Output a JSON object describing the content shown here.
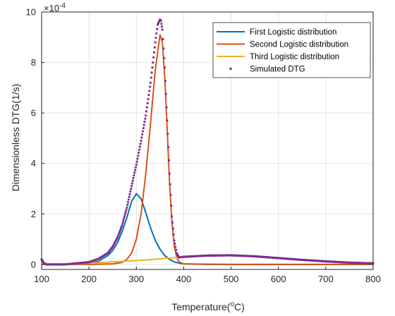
{
  "chart_data": {
    "type": "line",
    "xlabel": "Temperature(",
    "xlabel_sup": "o",
    "xlabel_tail": "C)",
    "ylabel": "Dimensionless DTG(1/s)",
    "y_exponent_base": "×10",
    "y_exponent_power": "-4",
    "xlim": [
      100,
      800
    ],
    "ylim": [
      -0.2,
      10
    ],
    "x_ticks": [
      100,
      200,
      300,
      400,
      500,
      600,
      700,
      800
    ],
    "y_ticks": [
      0,
      2,
      4,
      6,
      8,
      10
    ],
    "grid": true,
    "legend_position": "top-right",
    "series": [
      {
        "name": "First Logistic distribution",
        "color": "#0072BD",
        "style": "line",
        "x": [
          100,
          150,
          200,
          220,
          240,
          250,
          260,
          270,
          280,
          290,
          300,
          310,
          320,
          330,
          340,
          350,
          360,
          370,
          380,
          390,
          400,
          450,
          500,
          600,
          700,
          800
        ],
        "y": [
          0.0,
          0.0,
          0.04,
          0.12,
          0.35,
          0.55,
          0.85,
          1.3,
          1.85,
          2.5,
          2.8,
          2.6,
          2.05,
          1.45,
          0.95,
          0.6,
          0.35,
          0.2,
          0.1,
          0.05,
          0.02,
          0.0,
          0.0,
          0.0,
          0.0,
          0.0
        ]
      },
      {
        "name": "Second Logistic distribution",
        "color": "#D95319",
        "style": "line",
        "x": [
          100,
          200,
          250,
          270,
          280,
          290,
          300,
          310,
          320,
          330,
          340,
          350,
          355,
          360,
          365,
          370,
          375,
          380,
          385,
          390,
          400,
          500,
          600,
          700,
          800
        ],
        "y": [
          0.0,
          0.0,
          0.02,
          0.08,
          0.2,
          0.45,
          1.0,
          2.0,
          3.6,
          5.6,
          7.7,
          9.1,
          8.8,
          7.4,
          5.4,
          3.3,
          1.7,
          0.75,
          0.3,
          0.1,
          0.02,
          0.0,
          0.0,
          0.0,
          0.0
        ]
      },
      {
        "name": "Third Logistic distribution",
        "color": "#EDB120",
        "style": "line",
        "x": [
          100,
          150,
          200,
          250,
          300,
          350,
          400,
          450,
          500,
          550,
          600,
          650,
          700,
          750,
          800
        ],
        "y": [
          0.0,
          0.0,
          0.05,
          0.1,
          0.15,
          0.22,
          0.3,
          0.35,
          0.36,
          0.32,
          0.25,
          0.18,
          0.12,
          0.07,
          0.04
        ]
      },
      {
        "name": "Simulated DTG",
        "color": "#7E2F8E",
        "style": "dots",
        "x": [
          100,
          105,
          110,
          120,
          150,
          200,
          220,
          240,
          250,
          260,
          270,
          280,
          290,
          300,
          310,
          320,
          330,
          340,
          345,
          350,
          352,
          355,
          360,
          365,
          370,
          375,
          380,
          385,
          390,
          400,
          450,
          500,
          550,
          600,
          650,
          700,
          750,
          800
        ],
        "y": [
          0.2,
          0.05,
          0.0,
          0.0,
          0.0,
          0.09,
          0.22,
          0.45,
          0.7,
          1.05,
          1.55,
          2.25,
          3.1,
          3.95,
          4.9,
          5.9,
          7.2,
          8.8,
          9.5,
          9.7,
          9.65,
          9.3,
          7.8,
          5.7,
          3.6,
          1.9,
          0.95,
          0.45,
          0.28,
          0.3,
          0.35,
          0.36,
          0.32,
          0.25,
          0.18,
          0.12,
          0.07,
          0.04
        ]
      }
    ]
  }
}
